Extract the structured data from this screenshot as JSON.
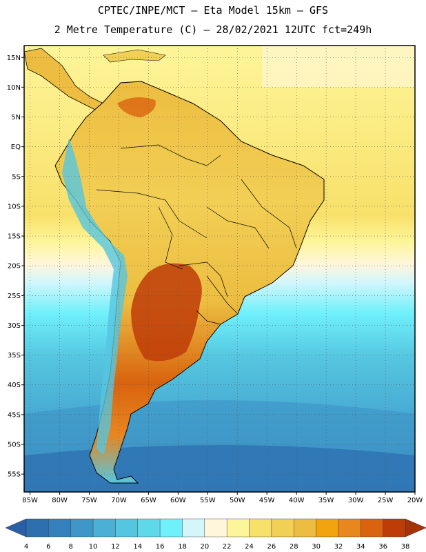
{
  "header": {
    "line1": "CPTEC/INPE/MCT —  Eta Model 15km — GFS",
    "line2": "2 Metre Temperature (C) — 28/02/2021 12UTC fct=249h"
  },
  "map": {
    "region": "South America",
    "lon_range": [
      -86,
      -20
    ],
    "lat_range": [
      -58,
      17
    ],
    "lat_labels": [
      "15N",
      "10N",
      "5N",
      "EQ",
      "5S",
      "10S",
      "15S",
      "20S",
      "25S",
      "30S",
      "35S",
      "40S",
      "45S",
      "50S",
      "55S"
    ],
    "lon_labels": [
      "85W",
      "80W",
      "75W",
      "70W",
      "65W",
      "60W",
      "55W",
      "50W",
      "45W",
      "40W",
      "35W",
      "30W",
      "25W",
      "20W"
    ]
  },
  "colorbar": {
    "ticks": [
      "4",
      "6",
      "8",
      "10",
      "12",
      "14",
      "16",
      "18",
      "20",
      "22",
      "24",
      "26",
      "28",
      "30",
      "32",
      "34",
      "36",
      "38"
    ],
    "colors": [
      "#2e6fb0",
      "#3581bd",
      "#3f97c8",
      "#4bb0d6",
      "#55c6e0",
      "#5fd9ea",
      "#6ff0fb",
      "#d3f6fb",
      "#fff6dc",
      "#fdf59a",
      "#f8e16a",
      "#f2cf55",
      "#ecbd40",
      "#f1a40e",
      "#e8861f",
      "#d9630f",
      "#be3c08"
    ],
    "low_color": "#2a5fa6",
    "high_color": "#a5330a"
  }
}
